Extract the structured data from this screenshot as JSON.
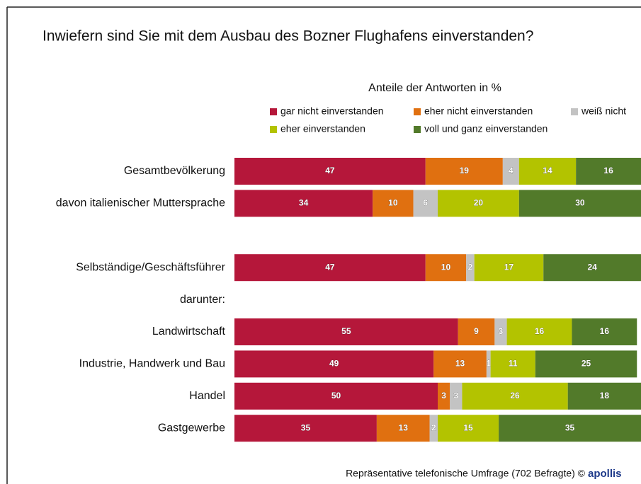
{
  "chart_data": {
    "type": "stacked_bar_horizontal",
    "title": "Inwiefern sind Sie mit dem Ausbau des Bozner Flughafens einverstanden?",
    "subtitle": "Anteile der Antworten in %",
    "categories": [
      "Gesamtbevölkerung",
      "davon italienischer Muttersprache",
      null,
      "Selbständige/Geschäftsführer",
      "darunter:",
      "Landwirtschaft",
      "Industrie, Handwerk und Bau",
      "Handel",
      "Gastgewerbe"
    ],
    "series": [
      {
        "name": "gar nicht einverstanden",
        "color": "#b5173a",
        "values": [
          47,
          34,
          null,
          47,
          null,
          55,
          49,
          50,
          35
        ]
      },
      {
        "name": "eher nicht einverstanden",
        "color": "#e07010",
        "values": [
          19,
          10,
          null,
          10,
          null,
          9,
          13,
          3,
          13
        ]
      },
      {
        "name": "weiß nicht",
        "color": "#c3c3c3",
        "values": [
          4,
          6,
          null,
          2,
          null,
          3,
          1,
          3,
          2
        ]
      },
      {
        "name": "eher einverstanden",
        "color": "#b3c300",
        "values": [
          14,
          20,
          null,
          17,
          null,
          16,
          11,
          26,
          15
        ]
      },
      {
        "name": "voll und ganz einverstanden",
        "color": "#527a2a",
        "values": [
          16,
          30,
          null,
          24,
          null,
          16,
          25,
          18,
          35
        ]
      }
    ],
    "xlim": [
      0,
      100
    ],
    "footer": "Repräsentative telefonische Umfrage (702 Befragte) ©",
    "logo": "apollis"
  }
}
